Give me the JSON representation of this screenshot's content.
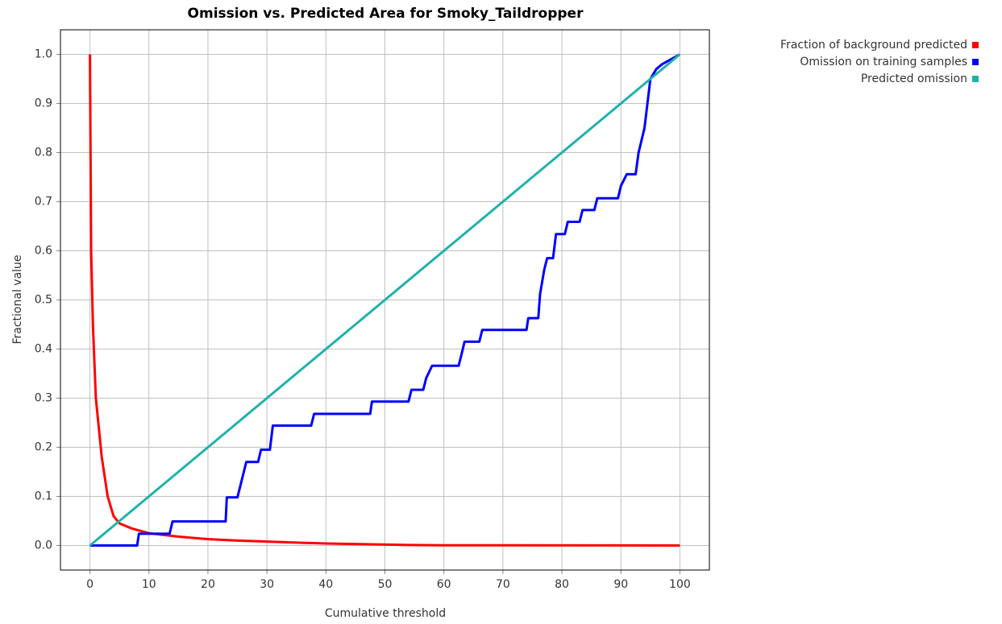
{
  "chart_data": {
    "type": "line",
    "title": "Omission vs. Predicted Area for Smoky_Taildropper",
    "x_label": "Cumulative threshold",
    "y_label": "Fractional value",
    "xlim": [
      -5,
      105
    ],
    "ylim": [
      -0.05,
      1.05
    ],
    "xticks": [
      0,
      10,
      20,
      30,
      40,
      50,
      60,
      70,
      80,
      90,
      100
    ],
    "yticks": [
      {
        "value": 0,
        "label": "0.0"
      },
      0.1,
      0.2,
      0.3,
      0.4,
      0.5,
      0.6,
      0.7,
      0.8,
      0.9,
      {
        "value": 1,
        "label": "1.0"
      }
    ],
    "grid": true,
    "legend": "right",
    "series": [
      {
        "name": "Fraction of background predicted",
        "color": "#ff0000",
        "x": [
          0,
          0.2,
          0.5,
          1,
          2,
          3,
          4,
          5,
          7,
          10,
          15,
          20,
          25,
          30,
          40,
          54,
          60,
          100
        ],
        "values": [
          1.0,
          0.6,
          0.45,
          0.3,
          0.18,
          0.1,
          0.06,
          0.045,
          0.035,
          0.025,
          0.018,
          0.013,
          0.01,
          0.008,
          0.004,
          0.001,
          0.0005,
          0
        ]
      },
      {
        "name": "Omission on training samples",
        "color": "#0000ff",
        "x": [
          0,
          8,
          8.3,
          13.5,
          14,
          23,
          23.2,
          25,
          25.5,
          26.5,
          28.5,
          29,
          30.5,
          31,
          37.5,
          38,
          47.5,
          47.8,
          54,
          54.5,
          56.5,
          57,
          58,
          62.5,
          63,
          63.5,
          66,
          66.5,
          74,
          74.3,
          76,
          76.3,
          77,
          77.5,
          78.5,
          79,
          80.5,
          81,
          83,
          83.5,
          85.5,
          86,
          89.5,
          90,
          91,
          92.5,
          93,
          94,
          94.5,
          95,
          96,
          97,
          100
        ],
        "values": [
          0,
          0,
          0.024,
          0.024,
          0.049,
          0.049,
          0.098,
          0.098,
          0.122,
          0.17,
          0.17,
          0.195,
          0.195,
          0.244,
          0.244,
          0.268,
          0.268,
          0.293,
          0.293,
          0.317,
          0.317,
          0.341,
          0.366,
          0.366,
          0.39,
          0.415,
          0.415,
          0.439,
          0.439,
          0.463,
          0.463,
          0.512,
          0.561,
          0.585,
          0.585,
          0.634,
          0.634,
          0.659,
          0.659,
          0.683,
          0.683,
          0.707,
          0.707,
          0.732,
          0.756,
          0.756,
          0.8,
          0.85,
          0.9,
          0.95,
          0.97,
          0.98,
          1.0
        ]
      },
      {
        "name": "Predicted omission",
        "color": "#20b2aa",
        "x": [
          0,
          100
        ],
        "values": [
          0,
          1
        ]
      }
    ]
  }
}
